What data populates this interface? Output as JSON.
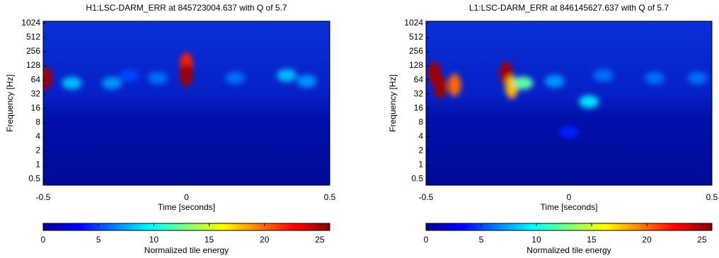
{
  "chart_data": [
    {
      "type": "spectrogram",
      "title": "H1:LSC-DARM_ERR at 845723004.637 with Q of 5.7",
      "xlabel": "Time [seconds]",
      "ylabel": "Frequency [Hz]",
      "log_y": true,
      "xlim": [
        -0.5,
        0.5
      ],
      "xticks": [
        -0.5,
        0,
        0.5
      ],
      "ylim": [
        0.37,
        1135
      ],
      "yticks": [
        0.5,
        1,
        2,
        4,
        8,
        16,
        32,
        64,
        128,
        256,
        512,
        1024
      ],
      "colorbar_label": "Normalized tile energy",
      "clim": [
        0,
        25.9
      ],
      "cticks": [
        0,
        5,
        10,
        15,
        20,
        25
      ],
      "x": [
        -0.49,
        -0.4,
        -0.26,
        -0.2,
        -0.1,
        0,
        0,
        0.17,
        0.35,
        0.42
      ],
      "y": [
        70,
        55,
        55,
        80,
        70,
        140,
        80,
        70,
        80,
        60
      ],
      "values": [
        25,
        8,
        7,
        5,
        6,
        22,
        25,
        6,
        8,
        7
      ]
    },
    {
      "type": "spectrogram",
      "title": "L1:LSC-DARM_ERR at 846145627.637 with Q of 5.7",
      "xlabel": "Time [seconds]",
      "ylabel": "Frequency [Hz]",
      "log_y": true,
      "xlim": [
        -0.5,
        0.5
      ],
      "xticks": [
        -0.5,
        0,
        0.5
      ],
      "ylim": [
        0.37,
        1135
      ],
      "yticks": [
        0.5,
        1,
        2,
        4,
        8,
        16,
        32,
        64,
        128,
        256,
        512,
        1024
      ],
      "colorbar_label": "Normalized tile energy",
      "clim": [
        0,
        25.9
      ],
      "cticks": [
        0,
        5,
        10,
        15,
        20,
        25
      ],
      "x": [
        -0.47,
        -0.45,
        -0.4,
        -0.22,
        -0.2,
        -0.16,
        -0.05,
        0.07,
        0.12,
        0.3,
        0.45,
        0
      ],
      "y": [
        90,
        45,
        50,
        90,
        45,
        55,
        60,
        22,
        80,
        70,
        70,
        5
      ],
      "values": [
        25,
        25,
        20,
        25,
        18,
        12,
        7,
        9,
        6,
        6,
        6,
        4
      ]
    }
  ]
}
